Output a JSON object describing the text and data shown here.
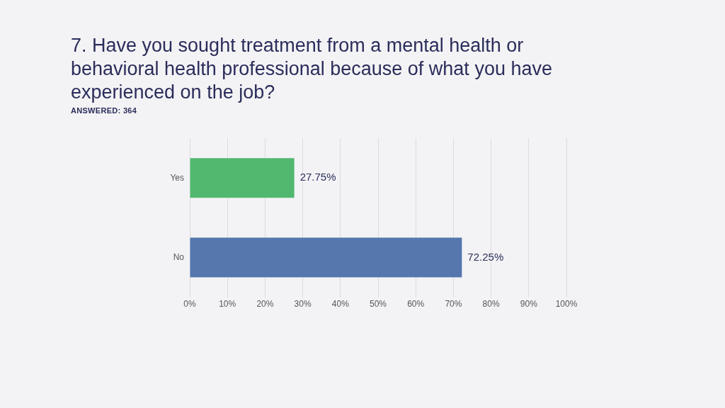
{
  "chart_data": {
    "type": "bar",
    "orientation": "horizontal",
    "title": "7. Have you sought treatment from a mental health or behavioral health professional because of what you have experienced on the job?",
    "subtitle": "ANSWERED: 364",
    "categories": [
      "Yes",
      "No"
    ],
    "values": [
      27.75,
      72.25
    ],
    "colors": [
      "#52b86f",
      "#5577ad"
    ],
    "value_labels": [
      "27.75%",
      "72.25%"
    ],
    "xlim": [
      0,
      100
    ],
    "xticks": [
      {
        "value": 0,
        "label": "0%"
      },
      {
        "value": 10,
        "label": "10%"
      },
      {
        "value": 20,
        "label": "20%"
      },
      {
        "value": 30,
        "label": "30%"
      },
      {
        "value": 40,
        "label": "40%"
      },
      {
        "value": 50,
        "label": "50%"
      },
      {
        "value": 60,
        "label": "60%"
      },
      {
        "value": 70,
        "label": "70%"
      },
      {
        "value": 80,
        "label": "80%"
      },
      {
        "value": 90,
        "label": "90%"
      },
      {
        "value": 100,
        "label": "100%"
      }
    ],
    "grid": "x",
    "legend": false
  }
}
